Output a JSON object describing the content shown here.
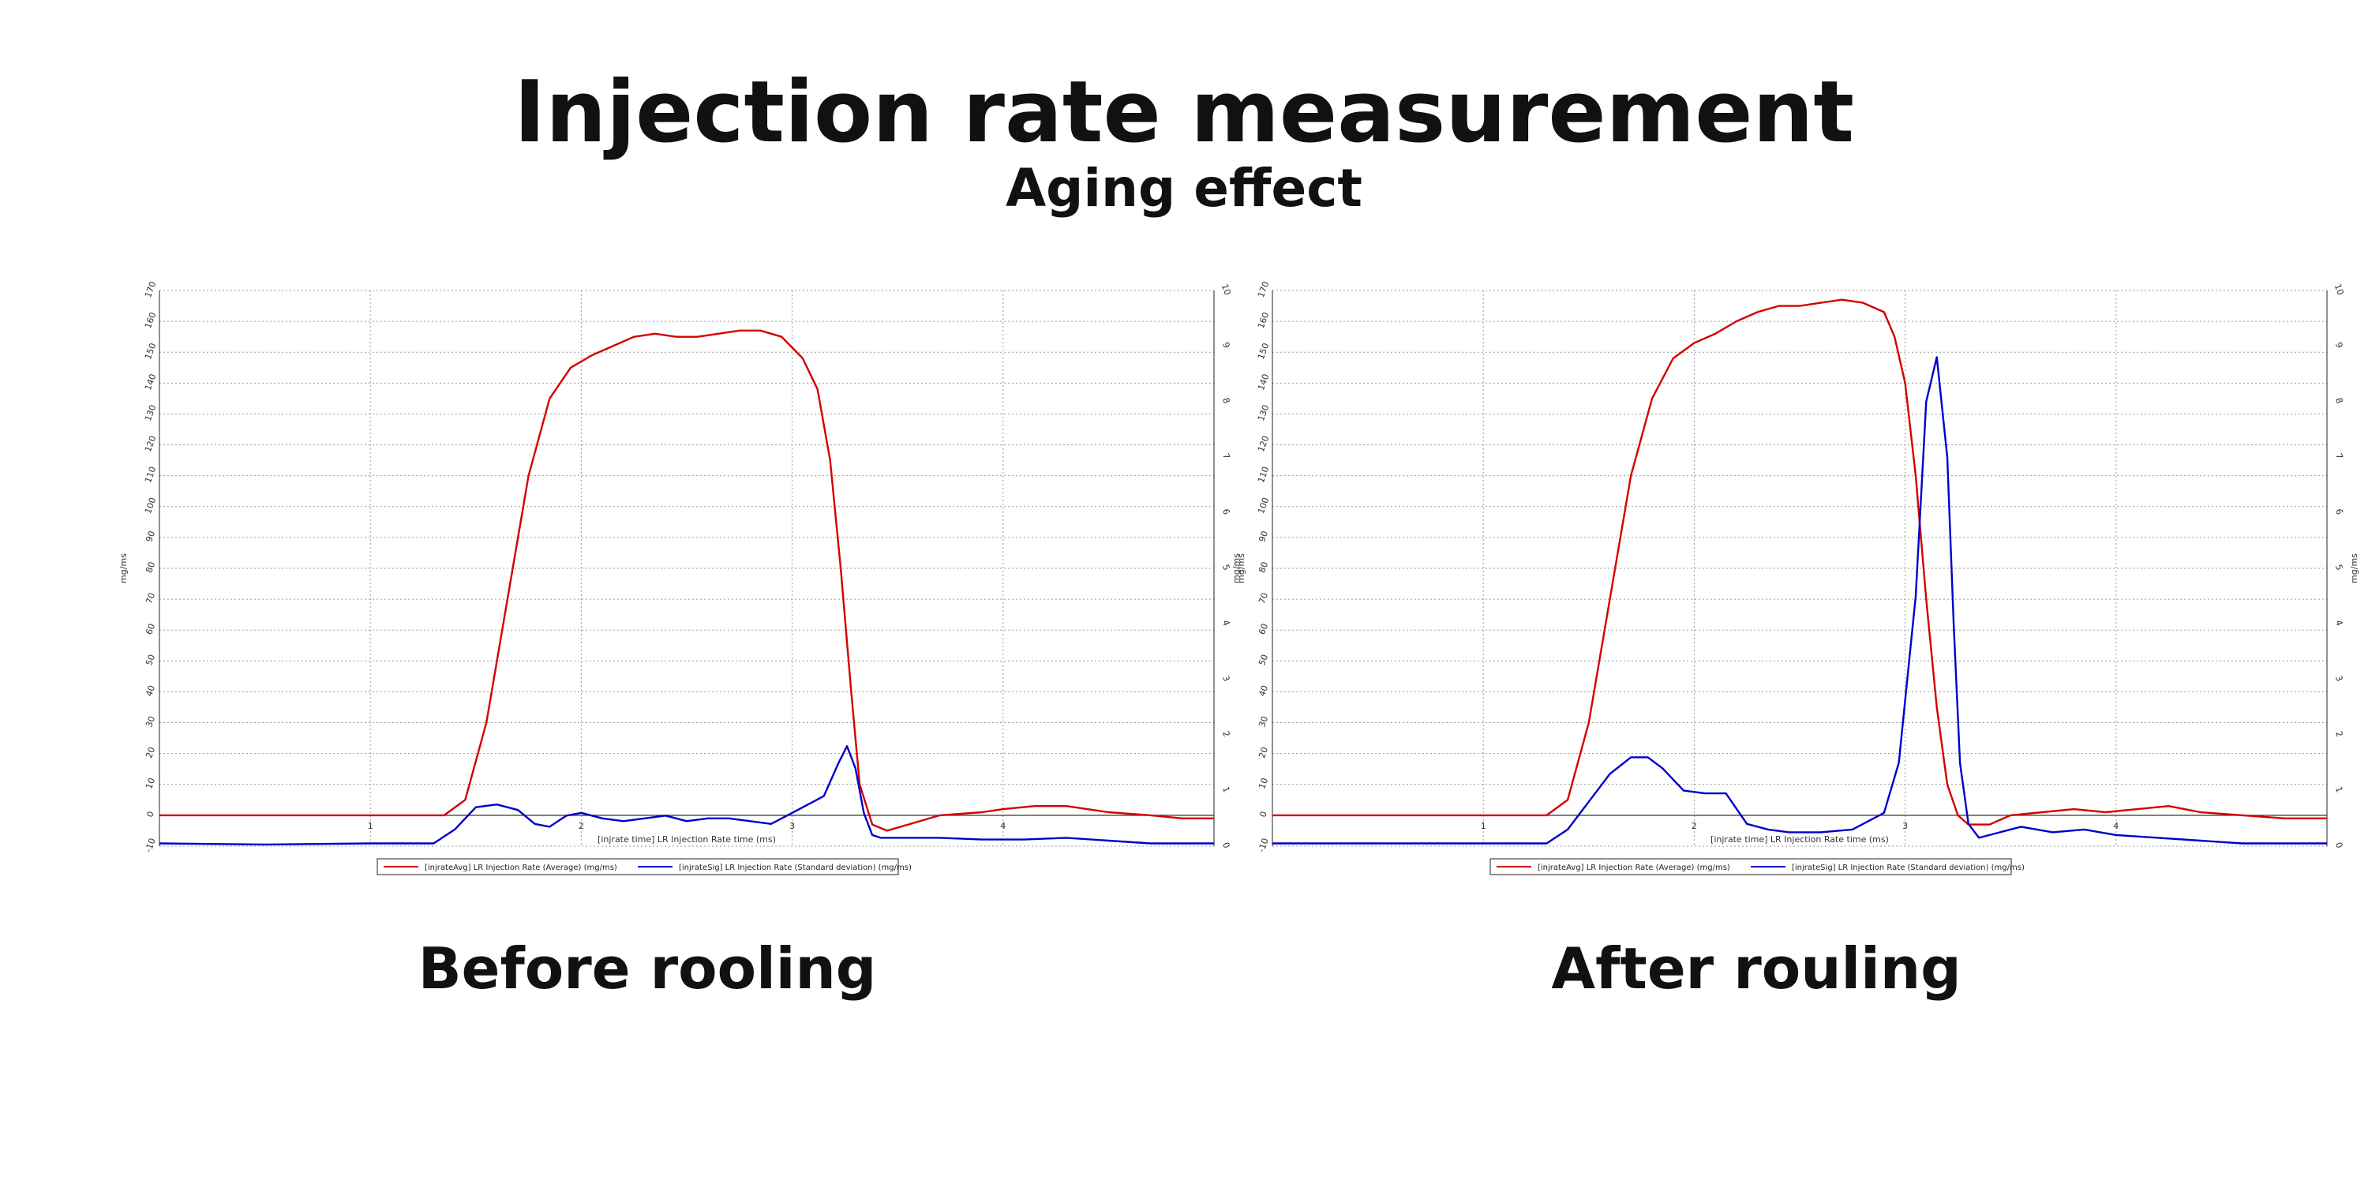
{
  "title": "Injection rate measurement",
  "subtitle": "Aging effect",
  "colors": {
    "series_avg": "#d40000",
    "series_sig": "#0000cc",
    "grid": "#9a9a9a",
    "zero_line": "#444444"
  },
  "chart_data": [
    {
      "type": "line",
      "caption": "Before rooling",
      "xlabel": "[injrate time] LR Injection Rate time (ms)",
      "ylabel": "mg/ms",
      "y2label": "mg/ms",
      "xlim": [
        0,
        5
      ],
      "ylim": [
        -10,
        170
      ],
      "y2lim": [
        0,
        10
      ],
      "x_ticks": [
        1,
        2,
        3,
        4
      ],
      "y_ticks": [
        -10,
        0,
        10,
        20,
        30,
        40,
        50,
        60,
        70,
        80,
        90,
        100,
        110,
        120,
        130,
        140,
        150,
        160,
        170
      ],
      "y2_ticks": [
        0,
        1,
        2,
        3,
        4,
        5,
        6,
        7,
        8,
        9,
        10
      ],
      "grid": true,
      "legend_position": "bottom-center",
      "series": [
        {
          "name": "[injrateAvg] LR Injection Rate (Average) (mg/ms)",
          "axis": "left",
          "x": [
            0,
            0.5,
            1.0,
            1.2,
            1.35,
            1.45,
            1.55,
            1.65,
            1.75,
            1.85,
            1.95,
            2.05,
            2.15,
            2.25,
            2.35,
            2.45,
            2.55,
            2.65,
            2.75,
            2.85,
            2.95,
            3.05,
            3.12,
            3.18,
            3.23,
            3.28,
            3.32,
            3.38,
            3.45,
            3.55,
            3.7,
            3.9,
            4.0,
            4.15,
            4.3,
            4.5,
            4.7,
            4.85,
            5.0
          ],
          "y": [
            0,
            0,
            0,
            0,
            0,
            5,
            30,
            70,
            110,
            135,
            145,
            149,
            152,
            155,
            156,
            155,
            155,
            156,
            157,
            157,
            155,
            148,
            138,
            115,
            80,
            40,
            10,
            -3,
            -5,
            -3,
            0,
            1,
            2,
            3,
            3,
            1,
            0,
            -1,
            -1
          ]
        },
        {
          "name": "[injrateSig] LR Injection Rate (Standard deviation) (mg/ms)",
          "axis": "right",
          "x": [
            0,
            0.5,
            1.0,
            1.2,
            1.3,
            1.4,
            1.5,
            1.6,
            1.7,
            1.78,
            1.85,
            1.93,
            2.0,
            2.1,
            2.2,
            2.3,
            2.4,
            2.5,
            2.6,
            2.7,
            2.8,
            2.9,
            3.0,
            3.1,
            3.15,
            3.22,
            3.26,
            3.3,
            3.34,
            3.38,
            3.42,
            3.5,
            3.7,
            3.9,
            4.1,
            4.3,
            4.5,
            4.7,
            4.85,
            5.0
          ],
          "y": [
            0.05,
            0.03,
            0.05,
            0.05,
            0.05,
            0.3,
            0.7,
            0.75,
            0.65,
            0.4,
            0.35,
            0.55,
            0.6,
            0.5,
            0.45,
            0.5,
            0.55,
            0.45,
            0.5,
            0.5,
            0.45,
            0.4,
            0.6,
            0.8,
            0.9,
            1.5,
            1.8,
            1.4,
            0.6,
            0.2,
            0.15,
            0.15,
            0.15,
            0.12,
            0.12,
            0.15,
            0.1,
            0.05,
            0.05,
            0.05
          ]
        }
      ]
    },
    {
      "type": "line",
      "caption": "After rouling",
      "xlabel": "[injrate time] LR Injection Rate time (ms)",
      "ylabel": "mg/ms",
      "y2label": "mg/ms",
      "xlim": [
        0,
        5
      ],
      "ylim": [
        -10,
        170
      ],
      "y2lim": [
        0,
        10
      ],
      "x_ticks": [
        1,
        2,
        3,
        4
      ],
      "y_ticks": [
        -10,
        0,
        10,
        20,
        30,
        40,
        50,
        60,
        70,
        80,
        90,
        100,
        110,
        120,
        130,
        140,
        150,
        160,
        170
      ],
      "y2_ticks": [
        0,
        1,
        2,
        3,
        4,
        5,
        6,
        7,
        8,
        9,
        10
      ],
      "grid": true,
      "legend_position": "bottom-center",
      "series": [
        {
          "name": "[injrateAvg] LR Injection Rate (Average) (mg/ms)",
          "axis": "left",
          "x": [
            0,
            0.5,
            1.0,
            1.2,
            1.3,
            1.4,
            1.5,
            1.6,
            1.7,
            1.8,
            1.9,
            2.0,
            2.1,
            2.2,
            2.3,
            2.4,
            2.5,
            2.6,
            2.7,
            2.8,
            2.9,
            2.95,
            3.0,
            3.05,
            3.1,
            3.15,
            3.2,
            3.25,
            3.3,
            3.4,
            3.5,
            3.65,
            3.8,
            3.95,
            4.1,
            4.25,
            4.4,
            4.6,
            4.8,
            5.0
          ],
          "y": [
            0,
            0,
            0,
            0,
            0,
            5,
            30,
            70,
            110,
            135,
            148,
            153,
            156,
            160,
            163,
            165,
            165,
            166,
            167,
            166,
            163,
            155,
            140,
            110,
            70,
            35,
            10,
            0,
            -3,
            -3,
            0,
            1,
            2,
            1,
            2,
            3,
            1,
            0,
            -1,
            -1
          ]
        },
        {
          "name": "[injrateSig] LR Injection Rate (Standard deviation) (mg/ms)",
          "axis": "right",
          "x": [
            0,
            0.5,
            1.0,
            1.2,
            1.3,
            1.4,
            1.5,
            1.6,
            1.7,
            1.78,
            1.85,
            1.95,
            2.05,
            2.15,
            2.25,
            2.35,
            2.45,
            2.6,
            2.75,
            2.9,
            2.97,
            3.05,
            3.1,
            3.15,
            3.2,
            3.23,
            3.26,
            3.3,
            3.35,
            3.4,
            3.45,
            3.55,
            3.7,
            3.85,
            4.0,
            4.2,
            4.4,
            4.6,
            4.8,
            5.0
          ],
          "y": [
            0.05,
            0.05,
            0.05,
            0.05,
            0.05,
            0.3,
            0.8,
            1.3,
            1.6,
            1.6,
            1.4,
            1.0,
            0.95,
            0.95,
            0.4,
            0.3,
            0.25,
            0.25,
            0.3,
            0.6,
            1.5,
            4.5,
            8.0,
            8.8,
            7.0,
            4.0,
            1.5,
            0.4,
            0.15,
            0.2,
            0.25,
            0.35,
            0.25,
            0.3,
            0.2,
            0.15,
            0.1,
            0.05,
            0.05,
            0.05
          ]
        }
      ]
    }
  ]
}
